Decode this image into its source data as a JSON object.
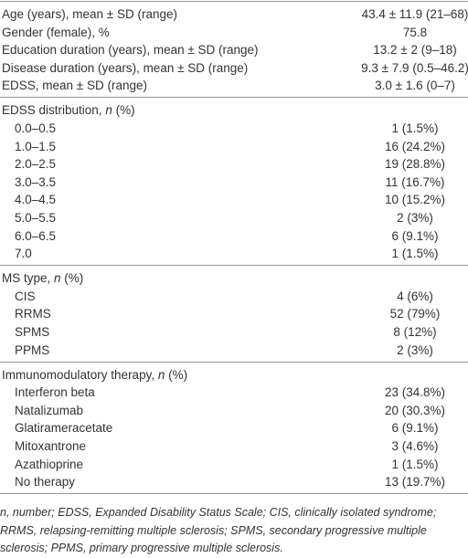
{
  "table": {
    "sections": [
      {
        "rows": [
          [
            "Age (years), mean ± SD (range)",
            "43.4 ± 11.9 (21–68)"
          ],
          [
            "Gender (female), %",
            "75.8"
          ],
          [
            "Education duration (years), mean ± SD (range)",
            "13.2 ± 2 (9–18)"
          ],
          [
            "Disease duration (years), mean ± SD (range)",
            "9.3 ± 7.9 (0.5–46.2)"
          ],
          [
            "EDSS, mean ± SD (range)",
            "3.0 ± 1.6 (0–7)"
          ]
        ]
      },
      {
        "heading": {
          "text": "EDSS distribution, ",
          "italic": "n",
          "rest": " (%)"
        },
        "rows": [
          [
            "0.0–0.5",
            "1 (1.5%)"
          ],
          [
            "1.0–1.5",
            "16 (24.2%)"
          ],
          [
            "2.0–2.5",
            "19 (28.8%)"
          ],
          [
            "3.0–3.5",
            "11 (16.7%)"
          ],
          [
            "4.0–4.5",
            "10 (15.2%)"
          ],
          [
            "5.0–5.5",
            "2 (3%)"
          ],
          [
            "6.0–6.5",
            "6 (9.1%)"
          ],
          [
            "7.0",
            "1 (1.5%)"
          ]
        ]
      },
      {
        "heading": {
          "text": "MS type, ",
          "italic": "n",
          "rest": " (%)"
        },
        "rows": [
          [
            "CIS",
            "4 (6%)"
          ],
          [
            "RRMS",
            "52 (79%)"
          ],
          [
            "SPMS",
            "8 (12%)"
          ],
          [
            "PPMS",
            "2 (3%)"
          ]
        ]
      },
      {
        "heading": {
          "text": "Immunomodulatory therapy, ",
          "italic": "n",
          "rest": " (%)"
        },
        "rows": [
          [
            "Interferon beta",
            "23 (34.8%)"
          ],
          [
            "Natalizumab",
            "20 (30.3%)"
          ],
          [
            "Glatirameracetate",
            "6 (9.1%)"
          ],
          [
            "Mitoxantrone",
            "3 (4.6%)"
          ],
          [
            "Azathioprine",
            "1 (1.5%)"
          ],
          [
            "No therapy",
            "13 (19.7%)"
          ]
        ]
      }
    ],
    "footnote": "n, number; EDSS, Expanded Disability Status Scale; CIS, clinically isolated syndrome; RRMS, relapsing-remitting multiple sclerosis; SPMS, secondary progressive multiple sclerosis; PPMS, primary progressive multiple sclerosis."
  }
}
